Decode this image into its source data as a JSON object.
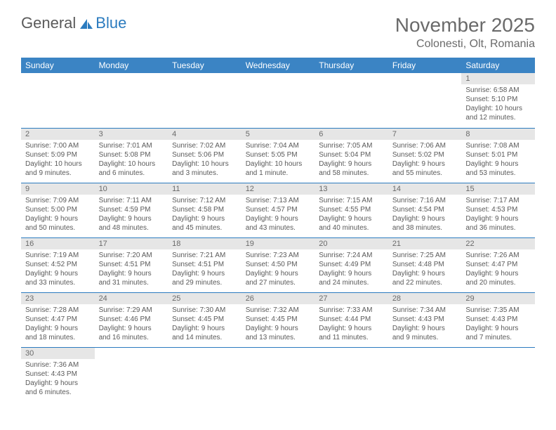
{
  "logo": {
    "general": "General",
    "blue": "Blue"
  },
  "title": "November 2025",
  "location": "Colonesti, Olt, Romania",
  "colors": {
    "header_bg": "#3b84c4",
    "header_text": "#ffffff",
    "daynum_bg": "#e6e6e6",
    "cell_border": "#2b7bbf",
    "text": "#5a5a5a",
    "logo_blue": "#2b7bbf"
  },
  "dayHeaders": [
    "Sunday",
    "Monday",
    "Tuesday",
    "Wednesday",
    "Thursday",
    "Friday",
    "Saturday"
  ],
  "weeks": [
    [
      null,
      null,
      null,
      null,
      null,
      null,
      {
        "n": "1",
        "sr": "Sunrise: 6:58 AM",
        "ss": "Sunset: 5:10 PM",
        "dl": "Daylight: 10 hours and 12 minutes."
      }
    ],
    [
      {
        "n": "2",
        "sr": "Sunrise: 7:00 AM",
        "ss": "Sunset: 5:09 PM",
        "dl": "Daylight: 10 hours and 9 minutes."
      },
      {
        "n": "3",
        "sr": "Sunrise: 7:01 AM",
        "ss": "Sunset: 5:08 PM",
        "dl": "Daylight: 10 hours and 6 minutes."
      },
      {
        "n": "4",
        "sr": "Sunrise: 7:02 AM",
        "ss": "Sunset: 5:06 PM",
        "dl": "Daylight: 10 hours and 3 minutes."
      },
      {
        "n": "5",
        "sr": "Sunrise: 7:04 AM",
        "ss": "Sunset: 5:05 PM",
        "dl": "Daylight: 10 hours and 1 minute."
      },
      {
        "n": "6",
        "sr": "Sunrise: 7:05 AM",
        "ss": "Sunset: 5:04 PM",
        "dl": "Daylight: 9 hours and 58 minutes."
      },
      {
        "n": "7",
        "sr": "Sunrise: 7:06 AM",
        "ss": "Sunset: 5:02 PM",
        "dl": "Daylight: 9 hours and 55 minutes."
      },
      {
        "n": "8",
        "sr": "Sunrise: 7:08 AM",
        "ss": "Sunset: 5:01 PM",
        "dl": "Daylight: 9 hours and 53 minutes."
      }
    ],
    [
      {
        "n": "9",
        "sr": "Sunrise: 7:09 AM",
        "ss": "Sunset: 5:00 PM",
        "dl": "Daylight: 9 hours and 50 minutes."
      },
      {
        "n": "10",
        "sr": "Sunrise: 7:11 AM",
        "ss": "Sunset: 4:59 PM",
        "dl": "Daylight: 9 hours and 48 minutes."
      },
      {
        "n": "11",
        "sr": "Sunrise: 7:12 AM",
        "ss": "Sunset: 4:58 PM",
        "dl": "Daylight: 9 hours and 45 minutes."
      },
      {
        "n": "12",
        "sr": "Sunrise: 7:13 AM",
        "ss": "Sunset: 4:57 PM",
        "dl": "Daylight: 9 hours and 43 minutes."
      },
      {
        "n": "13",
        "sr": "Sunrise: 7:15 AM",
        "ss": "Sunset: 4:55 PM",
        "dl": "Daylight: 9 hours and 40 minutes."
      },
      {
        "n": "14",
        "sr": "Sunrise: 7:16 AM",
        "ss": "Sunset: 4:54 PM",
        "dl": "Daylight: 9 hours and 38 minutes."
      },
      {
        "n": "15",
        "sr": "Sunrise: 7:17 AM",
        "ss": "Sunset: 4:53 PM",
        "dl": "Daylight: 9 hours and 36 minutes."
      }
    ],
    [
      {
        "n": "16",
        "sr": "Sunrise: 7:19 AM",
        "ss": "Sunset: 4:52 PM",
        "dl": "Daylight: 9 hours and 33 minutes."
      },
      {
        "n": "17",
        "sr": "Sunrise: 7:20 AM",
        "ss": "Sunset: 4:51 PM",
        "dl": "Daylight: 9 hours and 31 minutes."
      },
      {
        "n": "18",
        "sr": "Sunrise: 7:21 AM",
        "ss": "Sunset: 4:51 PM",
        "dl": "Daylight: 9 hours and 29 minutes."
      },
      {
        "n": "19",
        "sr": "Sunrise: 7:23 AM",
        "ss": "Sunset: 4:50 PM",
        "dl": "Daylight: 9 hours and 27 minutes."
      },
      {
        "n": "20",
        "sr": "Sunrise: 7:24 AM",
        "ss": "Sunset: 4:49 PM",
        "dl": "Daylight: 9 hours and 24 minutes."
      },
      {
        "n": "21",
        "sr": "Sunrise: 7:25 AM",
        "ss": "Sunset: 4:48 PM",
        "dl": "Daylight: 9 hours and 22 minutes."
      },
      {
        "n": "22",
        "sr": "Sunrise: 7:26 AM",
        "ss": "Sunset: 4:47 PM",
        "dl": "Daylight: 9 hours and 20 minutes."
      }
    ],
    [
      {
        "n": "23",
        "sr": "Sunrise: 7:28 AM",
        "ss": "Sunset: 4:47 PM",
        "dl": "Daylight: 9 hours and 18 minutes."
      },
      {
        "n": "24",
        "sr": "Sunrise: 7:29 AM",
        "ss": "Sunset: 4:46 PM",
        "dl": "Daylight: 9 hours and 16 minutes."
      },
      {
        "n": "25",
        "sr": "Sunrise: 7:30 AM",
        "ss": "Sunset: 4:45 PM",
        "dl": "Daylight: 9 hours and 14 minutes."
      },
      {
        "n": "26",
        "sr": "Sunrise: 7:32 AM",
        "ss": "Sunset: 4:45 PM",
        "dl": "Daylight: 9 hours and 13 minutes."
      },
      {
        "n": "27",
        "sr": "Sunrise: 7:33 AM",
        "ss": "Sunset: 4:44 PM",
        "dl": "Daylight: 9 hours and 11 minutes."
      },
      {
        "n": "28",
        "sr": "Sunrise: 7:34 AM",
        "ss": "Sunset: 4:43 PM",
        "dl": "Daylight: 9 hours and 9 minutes."
      },
      {
        "n": "29",
        "sr": "Sunrise: 7:35 AM",
        "ss": "Sunset: 4:43 PM",
        "dl": "Daylight: 9 hours and 7 minutes."
      }
    ],
    [
      {
        "n": "30",
        "sr": "Sunrise: 7:36 AM",
        "ss": "Sunset: 4:43 PM",
        "dl": "Daylight: 9 hours and 6 minutes."
      },
      null,
      null,
      null,
      null,
      null,
      null
    ]
  ]
}
